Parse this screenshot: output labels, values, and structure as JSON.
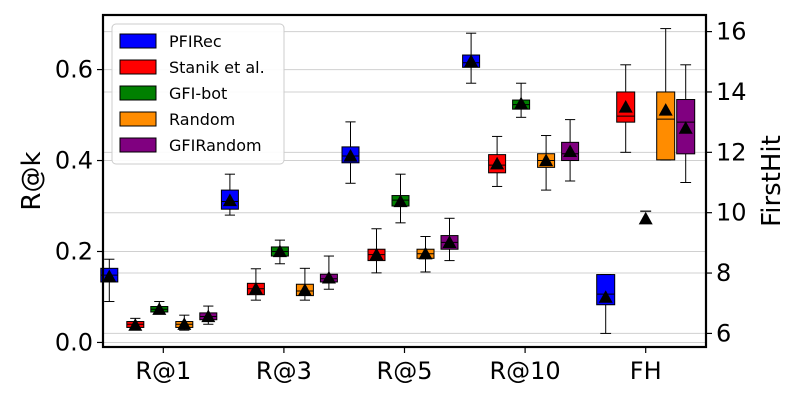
{
  "chart_data": {
    "type": "box",
    "categories": [
      "R@1",
      "R@3",
      "R@5",
      "R@10",
      "FH"
    ],
    "ylabel_left": "R@k",
    "ylabel_right": "FirstHit",
    "ylim_left": [
      -0.01,
      0.72
    ],
    "ylim_right": [
      5.55,
      16.55
    ],
    "yticks_left": [
      "0.0",
      "0.2",
      "0.4",
      "0.6"
    ],
    "yticks_right": [
      "6",
      "8",
      "10",
      "12",
      "14",
      "16"
    ],
    "grid": "horizontal",
    "legend_position": "top-left",
    "series": [
      {
        "name": "PFIRec",
        "color": "#0000ff",
        "boxes": [
          {
            "whislo": 0.09,
            "q1": 0.133,
            "med": 0.148,
            "q3": 0.163,
            "whishi": 0.183,
            "mean": 0.145
          },
          {
            "whislo": 0.28,
            "q1": 0.293,
            "med": 0.31,
            "q3": 0.335,
            "whishi": 0.37,
            "mean": 0.312
          },
          {
            "whislo": 0.35,
            "q1": 0.395,
            "med": 0.41,
            "q3": 0.43,
            "whishi": 0.485,
            "mean": 0.41
          },
          {
            "whislo": 0.57,
            "q1": 0.605,
            "med": 0.615,
            "q3": 0.632,
            "whishi": 0.68,
            "mean": 0.618
          },
          {
            "whislo": 6.0,
            "q1": 6.95,
            "med": 7.3,
            "q3": 7.95,
            "whishi": 7.95,
            "mean": 7.2
          }
        ]
      },
      {
        "name": "Stanik et al.",
        "color": "#ff0000",
        "boxes": [
          {
            "whislo": 0.033,
            "q1": 0.033,
            "med": 0.04,
            "q3": 0.046,
            "whishi": 0.053,
            "mean": 0.038
          },
          {
            "whislo": 0.093,
            "q1": 0.105,
            "med": 0.118,
            "q3": 0.13,
            "whishi": 0.162,
            "mean": 0.118
          },
          {
            "whislo": 0.153,
            "q1": 0.18,
            "med": 0.193,
            "q3": 0.205,
            "whishi": 0.25,
            "mean": 0.193
          },
          {
            "whislo": 0.343,
            "q1": 0.373,
            "med": 0.39,
            "q3": 0.413,
            "whishi": 0.453,
            "mean": 0.393
          },
          {
            "whislo": 12.0,
            "q1": 13.0,
            "med": 13.2,
            "q3": 14.0,
            "whishi": 14.9,
            "mean": 13.5
          }
        ]
      },
      {
        "name": "GFI-bot",
        "color": "#008000",
        "boxes": [
          {
            "whislo": 0.067,
            "q1": 0.067,
            "med": 0.073,
            "q3": 0.079,
            "whishi": 0.09,
            "mean": 0.073
          },
          {
            "whislo": 0.173,
            "q1": 0.19,
            "med": 0.2,
            "q3": 0.21,
            "whishi": 0.225,
            "mean": 0.2
          },
          {
            "whislo": 0.263,
            "q1": 0.3,
            "med": 0.313,
            "q3": 0.323,
            "whishi": 0.37,
            "mean": 0.31
          },
          {
            "whislo": 0.495,
            "q1": 0.513,
            "med": 0.523,
            "q3": 0.533,
            "whishi": 0.57,
            "mean": 0.525
          },
          {
            "whislo": 10.05,
            "q1": 10.05,
            "med": 10.05,
            "q3": 10.05,
            "whishi": 10.05,
            "mean": 9.8
          }
        ]
      },
      {
        "name": "Random",
        "color": "#ff8c00",
        "boxes": [
          {
            "whislo": 0.027,
            "q1": 0.033,
            "med": 0.04,
            "q3": 0.046,
            "whishi": 0.06,
            "mean": 0.04
          },
          {
            "whislo": 0.093,
            "q1": 0.103,
            "med": 0.113,
            "q3": 0.128,
            "whishi": 0.163,
            "mean": 0.115
          },
          {
            "whislo": 0.155,
            "q1": 0.185,
            "med": 0.195,
            "q3": 0.205,
            "whishi": 0.233,
            "mean": 0.195
          },
          {
            "whislo": 0.335,
            "q1": 0.385,
            "med": 0.4,
            "q3": 0.415,
            "whishi": 0.455,
            "mean": 0.4
          },
          {
            "whislo": 11.75,
            "q1": 11.75,
            "med": 13.1,
            "q3": 14.0,
            "whishi": 16.1,
            "mean": 13.4
          }
        ]
      },
      {
        "name": "GFIRandom",
        "color": "#800080",
        "boxes": [
          {
            "whislo": 0.04,
            "q1": 0.05,
            "med": 0.057,
            "q3": 0.065,
            "whishi": 0.08,
            "mean": 0.057
          },
          {
            "whislo": 0.117,
            "q1": 0.133,
            "med": 0.14,
            "q3": 0.15,
            "whishi": 0.19,
            "mean": 0.142
          },
          {
            "whislo": 0.18,
            "q1": 0.205,
            "med": 0.22,
            "q3": 0.235,
            "whishi": 0.273,
            "mean": 0.22
          },
          {
            "whislo": 0.355,
            "q1": 0.4,
            "med": 0.415,
            "q3": 0.44,
            "whishi": 0.49,
            "mean": 0.42
          },
          {
            "whislo": 11.0,
            "q1": 11.95,
            "med": 13.0,
            "q3": 13.75,
            "whishi": 14.9,
            "mean": 12.8
          }
        ]
      }
    ]
  }
}
